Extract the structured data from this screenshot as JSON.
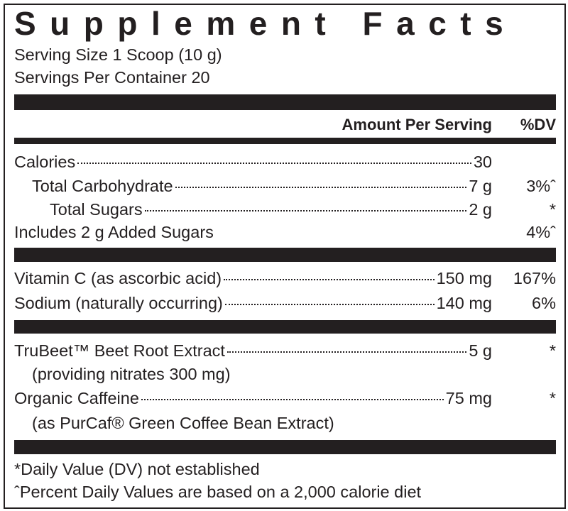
{
  "title": "Supplement Facts",
  "serving_size": "Serving Size 1 Scoop (10 g)",
  "servings_per_container": "Servings Per Container 20",
  "header": {
    "amount": "Amount Per Serving",
    "dv": "%DV"
  },
  "sections": [
    {
      "rows": [
        {
          "name": "Calories",
          "amount": "30"
        },
        {
          "name": "Total Carbohydrate",
          "amount": "7 g",
          "dv": "3%ˆ"
        },
        {
          "name": "Total Sugars",
          "amount": "2 g",
          "dv": "*"
        },
        {
          "name": "Includes 2 g Added Sugars",
          "dv": "4%ˆ"
        }
      ]
    },
    {
      "rows": [
        {
          "name": "Vitamin C (as ascorbic acid)",
          "amount": "150 mg",
          "dv": "167%"
        },
        {
          "name": "Sodium (naturally occurring)",
          "amount": "140 mg",
          "dv": "6%"
        }
      ]
    },
    {
      "rows": [
        {
          "name": "TruBeet™ Beet Root Extract",
          "amount": "5 g",
          "dv": "*"
        },
        {
          "name": "(providing nitrates 300 mg)"
        },
        {
          "name": "Organic Caffeine",
          "amount": "75 mg",
          "dv": "*"
        },
        {
          "name": "(as PurCaf® Green Coffee Bean Extract)"
        }
      ]
    }
  ],
  "footnotes": [
    "*Daily Value (DV) not established",
    "ˆPercent Daily Values are based on a 2,000 calorie diet"
  ]
}
